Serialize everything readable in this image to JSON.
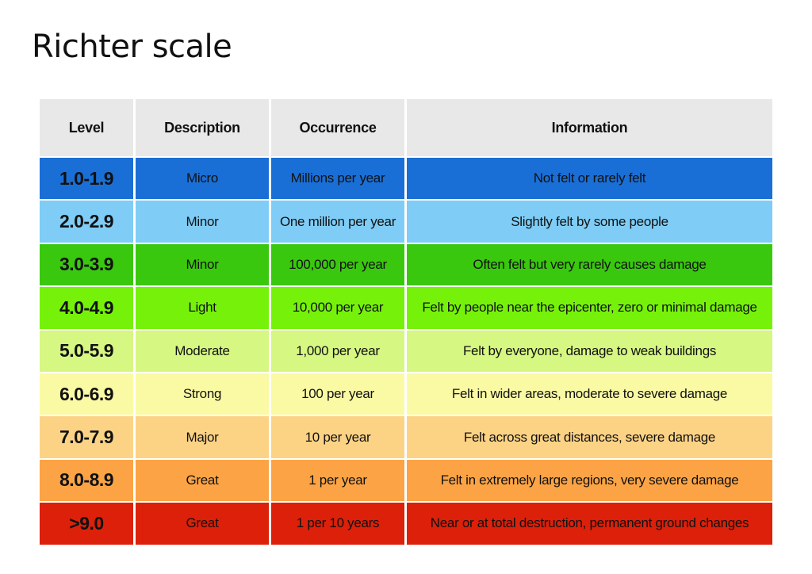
{
  "title": "Richter scale",
  "headers": {
    "level": "Level",
    "description": "Description",
    "occurrence": "Occurrence",
    "information": "Information"
  },
  "rows": [
    {
      "level": "1.0-1.9",
      "description": "Micro",
      "occurrence": "Millions per year",
      "information": "Not felt or rarely felt",
      "color": "#1a6fd6"
    },
    {
      "level": "2.0-2.9",
      "description": "Minor",
      "occurrence": "One million per year",
      "information": "Slightly felt by some people",
      "color": "#7fcdf6"
    },
    {
      "level": "3.0-3.9",
      "description": "Minor",
      "occurrence": "100,000 per year",
      "information": "Often felt but very rarely causes damage",
      "color": "#39c80e"
    },
    {
      "level": "4.0-4.9",
      "description": "Light",
      "occurrence": "10,000 per year",
      "information": "Felt by people near the epicenter, zero or minimal damage",
      "color": "#76f20a"
    },
    {
      "level": "5.0-5.9",
      "description": "Moderate",
      "occurrence": "1,000 per year",
      "information": "Felt by everyone, damage to weak buildings",
      "color": "#d6f781"
    },
    {
      "level": "6.0-6.9",
      "description": "Strong",
      "occurrence": "100 per year",
      "information": "Felt in wider areas, moderate to severe damage",
      "color": "#fbfaa4"
    },
    {
      "level": "7.0-7.9",
      "description": "Major",
      "occurrence": "10 per year",
      "information": "Felt across great distances, severe damage",
      "color": "#fcd385"
    },
    {
      "level": "8.0-8.9",
      "description": "Great",
      "occurrence": "1 per year",
      "information": "Felt in extremely large regions, very severe damage",
      "color": "#fca445"
    },
    {
      "level": ">9.0",
      "description": "Great",
      "occurrence": "1 per 10 years",
      "information": "Near or at total destruction, permanent ground changes",
      "color": "#dc2009"
    }
  ]
}
